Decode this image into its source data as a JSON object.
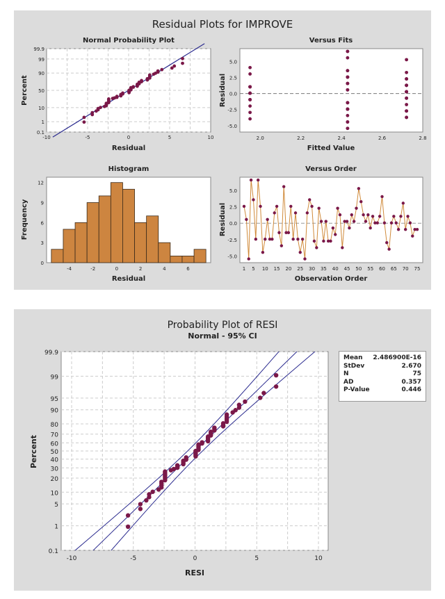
{
  "top_title": "Residual Plots for IMPROVE",
  "bottom_title": "Probability Plot of RESI",
  "bottom_subtitle": "Normal - 95% CI",
  "colors": {
    "point": "#7a1848",
    "line": "#2b2b8f",
    "bar": "#cd8540",
    "order_line": "#d08a3a",
    "panel_bg": "#dcdcdc"
  },
  "chart_data": [
    {
      "type": "scatter",
      "title": "Normal Probability Plot",
      "xlabel": "Residual",
      "ylabel": "Percent",
      "xlim": [
        -10,
        10
      ],
      "xticks": [
        "-10",
        "-5",
        "0",
        "5",
        "10"
      ],
      "yscale": "normal-probability",
      "yticks": [
        "0.1",
        "1",
        "10",
        "50",
        "90",
        "99",
        "99.9"
      ],
      "fit_line": {
        "mean": 0,
        "stdev": 2.67
      },
      "values_source": "residuals",
      "grid": true
    },
    {
      "type": "scatter",
      "title": "Versus Fits",
      "xlabel": "Fitted Value",
      "ylabel": "Residual",
      "xlim": [
        1.9,
        2.8
      ],
      "xticks": [
        "2.0",
        "2.2",
        "2.4",
        "2.6",
        "2.8"
      ],
      "ylim": [
        -6,
        7
      ],
      "yticks": [
        "-5.0",
        "-2.5",
        "0.0",
        "2.5",
        "5.0"
      ],
      "reference_line": 0,
      "fitted_groups": [
        2.43,
        2.72,
        1.95
      ]
    },
    {
      "type": "bar",
      "title": "Histogram",
      "xlabel": "Residual",
      "ylabel": "Frequency",
      "bin_centers": [
        -5,
        -4,
        -3,
        -2,
        -1,
        0,
        1,
        2,
        3,
        4,
        5,
        6,
        7
      ],
      "values": [
        2,
        5,
        6,
        9,
        10,
        12,
        11,
        6,
        7,
        3,
        1,
        1,
        2
      ],
      "xticks": [
        "-4",
        "-2",
        "0",
        "2",
        "4",
        "6"
      ],
      "yticks": [
        "0",
        "3",
        "6",
        "9",
        "12"
      ],
      "ylim": [
        0,
        12.8
      ]
    },
    {
      "type": "line",
      "title": "Versus Order",
      "xlabel": "Observation Order",
      "ylabel": "Residual",
      "xticks": [
        "1",
        "5",
        "10",
        "15",
        "20",
        "25",
        "30",
        "35",
        "40",
        "45",
        "50",
        "55",
        "60",
        "65",
        "70",
        "75"
      ],
      "yticks": [
        "-5.0",
        "-2.5",
        "0.0",
        "2.5",
        "5.0"
      ],
      "ylim": [
        -6,
        7
      ],
      "reference_line": 0,
      "residuals": [
        2.57,
        0.57,
        -5.43,
        6.57,
        3.57,
        -2.43,
        6.57,
        2.57,
        -4.43,
        -2.43,
        0.57,
        -2.43,
        -2.43,
        1.57,
        2.57,
        -1.43,
        -3.43,
        5.57,
        -1.43,
        -1.43,
        2.57,
        -2.43,
        1.57,
        -2.43,
        -4.43,
        -2.43,
        -5.43,
        1.57,
        3.57,
        2.57,
        -2.72,
        -3.72,
        2.28,
        0.28,
        -2.72,
        0.28,
        -2.72,
        -2.72,
        -0.72,
        -1.72,
        2.28,
        1.28,
        -3.72,
        0.28,
        0.28,
        -0.72,
        1.28,
        0.28,
        2.28,
        5.28,
        3.28,
        1.28,
        0.28,
        1.28,
        -0.72,
        1.05,
        0.05,
        0.05,
        1.05,
        4.05,
        0.05,
        -2.95,
        -3.95,
        0.05,
        1.05,
        0.05,
        -0.95,
        1.05,
        3.05,
        -0.95,
        1.05,
        0.05,
        -1.95,
        -0.95,
        -0.95
      ]
    },
    {
      "type": "scatter",
      "title": "Probability Plot of RESI",
      "subtitle": "Normal - 95% CI",
      "xlabel": "RESI",
      "ylabel": "Percent",
      "xlim": [
        -11,
        10.8
      ],
      "xticks": [
        "-10",
        "-5",
        "0",
        "5",
        "10"
      ],
      "yscale": "normal-probability",
      "yticks": [
        "0.1",
        "1",
        "5",
        "10",
        "20",
        "30",
        "40",
        "50",
        "60",
        "70",
        "80",
        "90",
        "95",
        "99",
        "99.9"
      ],
      "fit_line": {
        "mean": 0,
        "stdev": 2.67
      },
      "confidence_level": 95,
      "values_source": "residuals",
      "legend": {
        "position": "right",
        "rows": [
          {
            "label": "Mean",
            "value": "2.486900E-16"
          },
          {
            "label": "StDev",
            "value": "2.670"
          },
          {
            "label": "N",
            "value": "75"
          },
          {
            "label": "AD",
            "value": "0.357"
          },
          {
            "label": "P-Value",
            "value": "0.446"
          }
        ]
      }
    }
  ]
}
